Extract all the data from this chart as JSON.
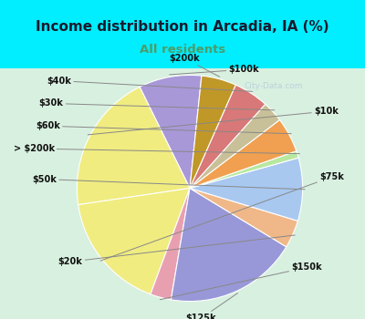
{
  "title": "Income distribution in Arcadia, IA (%)",
  "subtitle": "All residents",
  "title_color": "#1a1a2e",
  "subtitle_color": "#4a9e6b",
  "background_top": "#00eeff",
  "background_chart_gradient": true,
  "labels": [
    "$100k",
    "$10k",
    "$75k",
    "$150k",
    "$125k",
    "$20k",
    "$50k",
    "> $200k",
    "$60k",
    "$30k",
    "$40k",
    "$200k"
  ],
  "sizes": [
    9,
    20,
    17,
    3,
    19,
    4,
    9,
    1,
    5,
    3,
    5,
    5
  ],
  "colors": [
    "#a898d8",
    "#f0ec80",
    "#f0ec80",
    "#e8a0b0",
    "#9898d8",
    "#f0b888",
    "#a8c8f0",
    "#b8e8a0",
    "#f0a050",
    "#c8c098",
    "#d87878",
    "#c09828"
  ],
  "startangle": 84,
  "watermark": "City-Data.com",
  "label_lines": [
    [
      "$100k",
      [
        0.38,
        0.85
      ],
      [
        0.6,
        0.92
      ]
    ],
    [
      "$10k",
      [
        0.72,
        0.72
      ],
      [
        0.88,
        0.7
      ]
    ],
    [
      "$75k",
      [
        0.88,
        0.32
      ],
      [
        1.0,
        0.32
      ]
    ],
    [
      "$150k",
      [
        0.55,
        -0.28
      ],
      [
        0.72,
        -0.35
      ]
    ],
    [
      "$125k",
      [
        -0.05,
        -0.68
      ],
      [
        0.05,
        -0.82
      ]
    ],
    [
      "$20k",
      [
        -0.45,
        -0.22
      ],
      [
        -0.65,
        -0.28
      ]
    ],
    [
      "$50k",
      [
        -0.72,
        0.28
      ],
      [
        -0.9,
        0.28
      ]
    ],
    [
      "> $200k",
      [
        -0.7,
        0.48
      ],
      [
        -0.88,
        0.52
      ]
    ],
    [
      "$60k",
      [
        -0.6,
        0.62
      ],
      [
        -0.78,
        0.65
      ]
    ],
    [
      "$30k",
      [
        -0.48,
        0.75
      ],
      [
        -0.66,
        0.78
      ]
    ],
    [
      "$40k",
      [
        -0.35,
        0.85
      ],
      [
        -0.52,
        0.88
      ]
    ],
    [
      "$200k",
      [
        0.08,
        0.92
      ],
      [
        0.08,
        1.05
      ]
    ]
  ]
}
